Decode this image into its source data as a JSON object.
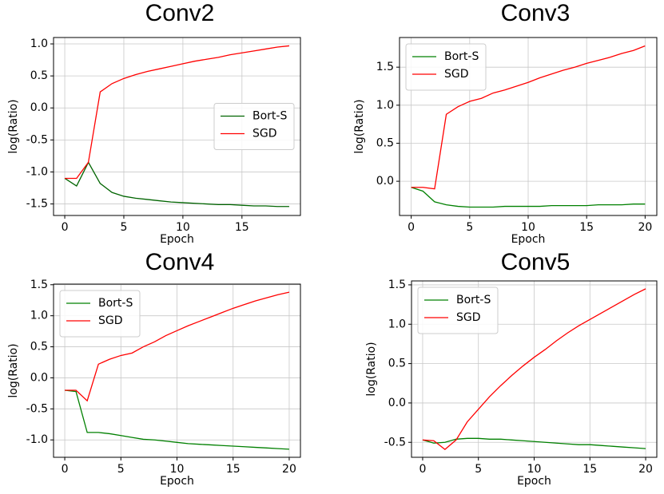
{
  "chart_data": [
    {
      "type": "line",
      "title": "Conv2",
      "xlabel": "Epoch",
      "ylabel": "log(Ratio)",
      "x": [
        0,
        1,
        2,
        3,
        4,
        5,
        6,
        7,
        8,
        9,
        10,
        11,
        12,
        13,
        14,
        15,
        16,
        17,
        18,
        19
      ],
      "series": [
        {
          "name": "Bort-S",
          "color": "#006400",
          "values": [
            -1.1,
            -1.22,
            -0.85,
            -1.18,
            -1.32,
            -1.38,
            -1.41,
            -1.43,
            -1.45,
            -1.47,
            -1.48,
            -1.49,
            -1.5,
            -1.51,
            -1.51,
            -1.52,
            -1.53,
            -1.53,
            -1.54,
            -1.54
          ]
        },
        {
          "name": "SGD",
          "color": "#ff0000",
          "values": [
            -1.1,
            -1.1,
            -0.85,
            0.25,
            0.38,
            0.46,
            0.52,
            0.57,
            0.61,
            0.65,
            0.69,
            0.73,
            0.76,
            0.79,
            0.83,
            0.86,
            0.89,
            0.92,
            0.95,
            0.97
          ]
        }
      ],
      "xlim": [
        -0.95,
        19.95
      ],
      "ylim": [
        -1.68,
        1.1
      ],
      "xticks": [
        0,
        5,
        10,
        15
      ],
      "yticks": [
        -1.5,
        {
          "value": -1,
          "label": "-1.0"
        },
        -0.5,
        {
          "value": 0,
          "label": "0.0"
        },
        0.5,
        {
          "value": 1,
          "label": "1.0"
        }
      ],
      "grid": true,
      "legend": "center right"
    },
    {
      "type": "line",
      "title": "Conv3",
      "xlabel": "Epoch",
      "ylabel": "log(Ratio)",
      "x": [
        0,
        1,
        2,
        3,
        4,
        5,
        6,
        7,
        8,
        9,
        10,
        11,
        12,
        13,
        14,
        15,
        16,
        17,
        18,
        19,
        20
      ],
      "series": [
        {
          "name": "Bort-S",
          "color": "#008000",
          "values": [
            -0.08,
            -0.13,
            -0.27,
            -0.31,
            -0.33,
            -0.34,
            -0.34,
            -0.34,
            -0.33,
            -0.33,
            -0.33,
            -0.33,
            -0.32,
            -0.32,
            -0.32,
            -0.32,
            -0.31,
            -0.31,
            -0.31,
            -0.3,
            -0.3
          ]
        },
        {
          "name": "SGD",
          "color": "#ff0000",
          "values": [
            -0.08,
            -0.08,
            -0.1,
            0.88,
            0.98,
            1.05,
            1.09,
            1.16,
            1.2,
            1.25,
            1.3,
            1.36,
            1.41,
            1.46,
            1.5,
            1.55,
            1.59,
            1.63,
            1.68,
            1.72,
            1.78
          ]
        }
      ],
      "xlim": [
        -1,
        21
      ],
      "ylim": [
        -0.45,
        1.89
      ],
      "xticks": [
        0,
        5,
        10,
        15,
        20
      ],
      "yticks": [
        {
          "value": 0,
          "label": "0.0"
        },
        0.5,
        {
          "value": 1,
          "label": "1.0"
        },
        1.5
      ],
      "grid": true,
      "legend": "upper left"
    },
    {
      "type": "line",
      "title": "Conv4",
      "xlabel": "Epoch",
      "ylabel": "log(Ratio)",
      "x": [
        0,
        1,
        2,
        3,
        4,
        5,
        6,
        7,
        8,
        9,
        10,
        11,
        12,
        13,
        14,
        15,
        16,
        17,
        18,
        19,
        20
      ],
      "series": [
        {
          "name": "Bort-S",
          "color": "#008000",
          "values": [
            -0.2,
            -0.22,
            -0.88,
            -0.88,
            -0.9,
            -0.93,
            -0.96,
            -0.99,
            -1.0,
            -1.02,
            -1.04,
            -1.06,
            -1.07,
            -1.08,
            -1.09,
            -1.1,
            -1.11,
            -1.12,
            -1.13,
            -1.14,
            -1.15
          ]
        },
        {
          "name": "SGD",
          "color": "#ff0000",
          "values": [
            -0.2,
            -0.2,
            -0.37,
            0.22,
            0.3,
            0.36,
            0.4,
            0.5,
            0.58,
            0.68,
            0.76,
            0.84,
            0.91,
            0.98,
            1.05,
            1.12,
            1.18,
            1.24,
            1.29,
            1.34,
            1.38
          ]
        }
      ],
      "xlim": [
        -1,
        21
      ],
      "ylim": [
        -1.28,
        1.51
      ],
      "xticks": [
        0,
        5,
        10,
        15,
        20
      ],
      "yticks": [
        {
          "value": -1,
          "label": "-1.0"
        },
        -0.5,
        {
          "value": 0,
          "label": "0.0"
        },
        0.5,
        {
          "value": 1,
          "label": "1.0"
        },
        1.5
      ],
      "grid": true,
      "legend": "upper left"
    },
    {
      "type": "line",
      "title": "Conv5",
      "xlabel": "Epoch",
      "ylabel": "log(Ratio)",
      "x": [
        0,
        1,
        2,
        3,
        4,
        5,
        6,
        7,
        8,
        9,
        10,
        11,
        12,
        13,
        14,
        15,
        16,
        17,
        18,
        19,
        20
      ],
      "series": [
        {
          "name": "Bort-S",
          "color": "#008000",
          "values": [
            -0.47,
            -0.51,
            -0.5,
            -0.46,
            -0.45,
            -0.45,
            -0.46,
            -0.46,
            -0.47,
            -0.48,
            -0.49,
            -0.5,
            -0.51,
            -0.52,
            -0.53,
            -0.53,
            -0.54,
            -0.55,
            -0.56,
            -0.57,
            -0.58
          ]
        },
        {
          "name": "SGD",
          "color": "#ff0000",
          "values": [
            -0.47,
            -0.48,
            -0.59,
            -0.47,
            -0.24,
            -0.08,
            0.08,
            0.22,
            0.35,
            0.47,
            0.58,
            0.68,
            0.79,
            0.89,
            0.98,
            1.06,
            1.14,
            1.22,
            1.3,
            1.38,
            1.45
          ]
        }
      ],
      "xlim": [
        -1,
        21
      ],
      "ylim": [
        -0.69,
        1.55
      ],
      "xticks": [
        0,
        5,
        10,
        15,
        20
      ],
      "yticks": [
        -0.5,
        {
          "value": 0,
          "label": "0.0"
        },
        0.5,
        {
          "value": 1,
          "label": "1.0"
        },
        1.5
      ],
      "grid": true,
      "legend": "upper left"
    }
  ]
}
